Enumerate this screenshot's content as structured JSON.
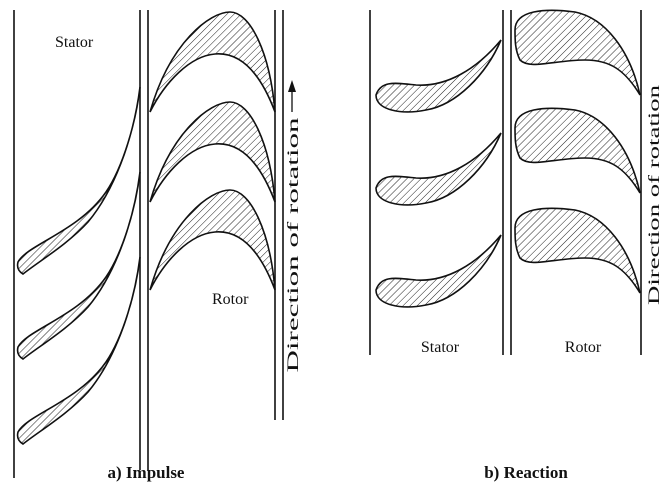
{
  "panels": [
    {
      "stator_label": "Stator",
      "rotor_label": "Rotor",
      "direction_label": "Direction of rotation",
      "caption": "a) Impulse"
    },
    {
      "stator_label": "Stator",
      "rotor_label": "Rotor",
      "direction_label": "Direction of rotation",
      "caption": "b) Reaction"
    }
  ]
}
